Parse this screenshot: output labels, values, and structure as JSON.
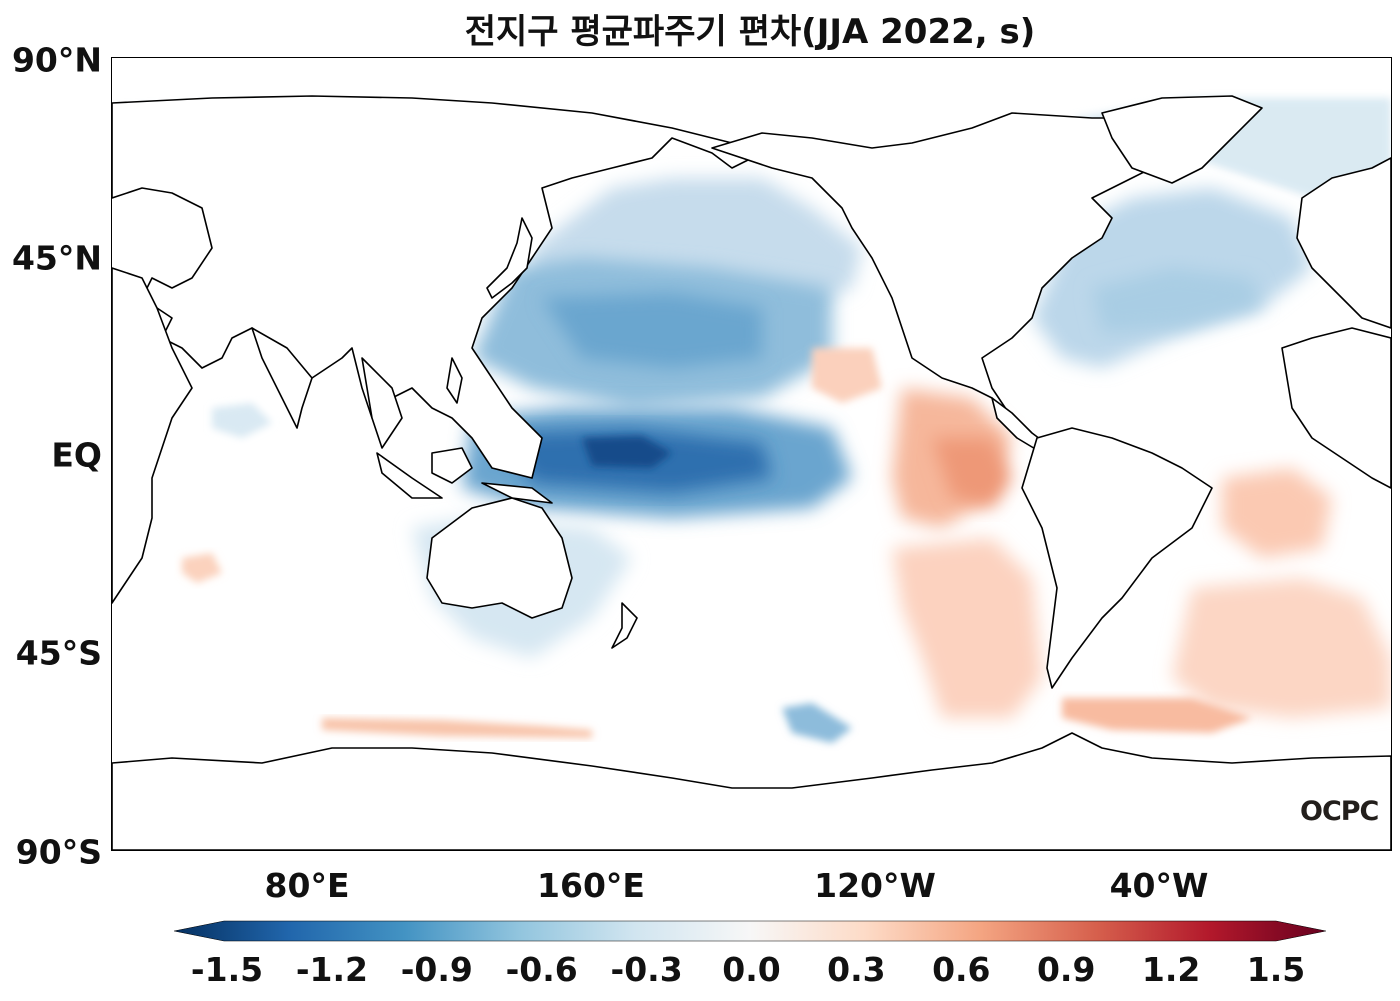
{
  "title": "전지구 평균파주기 편차(JJA 2022, s)",
  "y_ticks": [
    "90°N",
    "45°N",
    "EQ",
    "45°S",
    "90°S"
  ],
  "x_ticks": [
    "80°E",
    "160°E",
    "120°W",
    "40°W"
  ],
  "colorbar": {
    "ticks": [
      "-1.5",
      "-1.2",
      "-0.9",
      "-0.6",
      "-0.3",
      "0.0",
      "0.3",
      "0.6",
      "0.9",
      "1.2",
      "1.5"
    ],
    "colormap": "RdBu_r",
    "min": -1.5,
    "max": 1.5,
    "colors": [
      "#053061",
      "#2166ac",
      "#4393c3",
      "#92c5de",
      "#d1e5f0",
      "#f7f7f7",
      "#fddbc7",
      "#f4a582",
      "#d6604d",
      "#b2182b",
      "#67001f"
    ]
  },
  "logo": "OCPC",
  "colors": {
    "land": "#ffffff",
    "coastline": "#000000"
  }
}
